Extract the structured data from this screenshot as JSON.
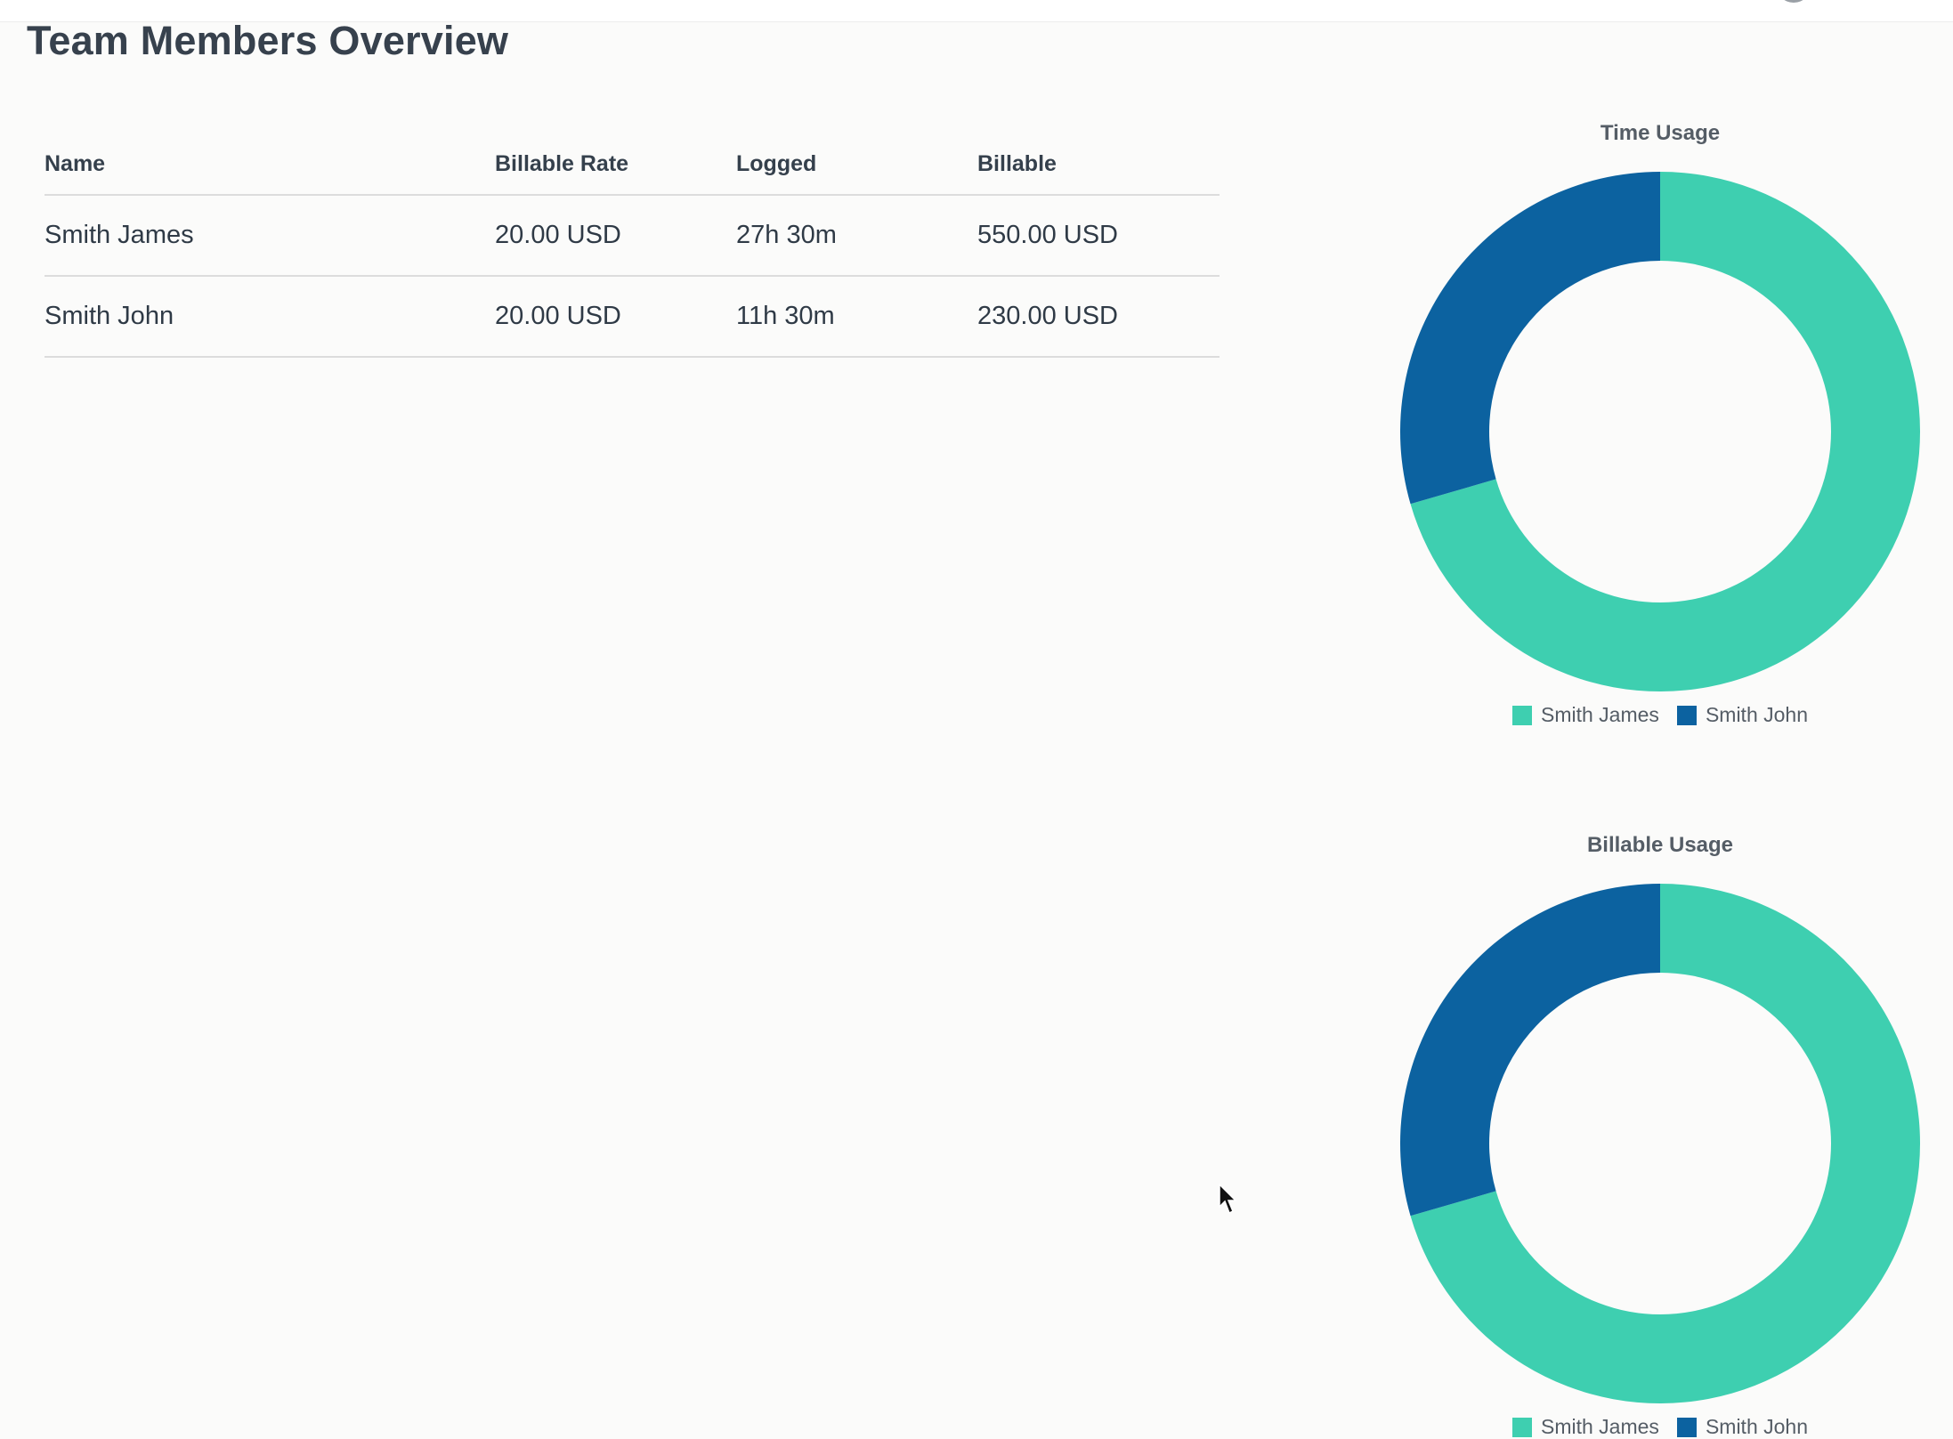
{
  "page": {
    "title": "Team Members Overview"
  },
  "table": {
    "headers": [
      "Name",
      "Billable Rate",
      "Logged",
      "Billable"
    ],
    "rows": [
      [
        "Smith James",
        "20.00 USD",
        "27h 30m",
        "550.00 USD"
      ],
      [
        "Smith John",
        "20.00 USD",
        "11h 30m",
        "230.00 USD"
      ]
    ]
  },
  "colors": {
    "series_1": "#3ecfb0",
    "series_2": "#0c62a0"
  },
  "chart_data": [
    {
      "type": "pie",
      "style": "donut",
      "title": "Time Usage",
      "categories": [
        "Smith James",
        "Smith John"
      ],
      "values": [
        27.5,
        11.5
      ],
      "legend": "bottom"
    },
    {
      "type": "pie",
      "style": "donut",
      "title": "Billable Usage",
      "categories": [
        "Smith James",
        "Smith John"
      ],
      "values": [
        550,
        230
      ],
      "legend": "bottom"
    }
  ]
}
